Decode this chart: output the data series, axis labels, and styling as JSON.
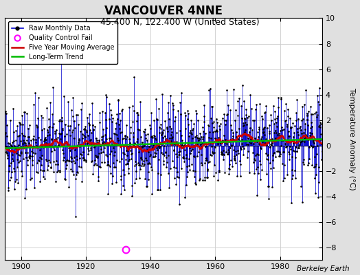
{
  "title": "VANCOUVER 4NNE",
  "subtitle": "45.400 N, 122.400 W (United States)",
  "ylabel": "Temperature Anomaly (°C)",
  "credit": "Berkeley Earth",
  "xlim": [
    1895,
    1993
  ],
  "ylim": [
    -9,
    10
  ],
  "yticks": [
    -8,
    -6,
    -4,
    -2,
    0,
    2,
    4,
    6,
    8,
    10
  ],
  "xticks": [
    1900,
    1920,
    1940,
    1960,
    1980
  ],
  "start_year": 1895,
  "end_year": 1992,
  "qc_fail_year": 1932,
  "qc_fail_month": 6,
  "qc_fail_value": -8.2,
  "raw_color": "#0000cc",
  "ma_color": "#cc0000",
  "trend_color": "#00bb00",
  "qc_color": "#ff00ff",
  "bg_color": "#e0e0e0",
  "plot_bg_color": "#ffffff",
  "grid_color": "#cccccc",
  "title_fontsize": 12,
  "subtitle_fontsize": 9,
  "label_fontsize": 8,
  "seed": 42,
  "noise_std": 2.0
}
